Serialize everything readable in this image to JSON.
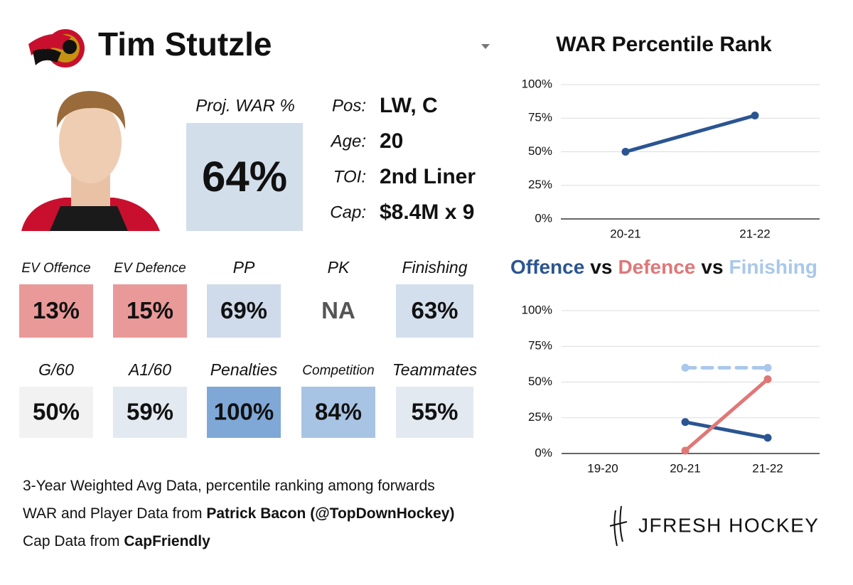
{
  "header": {
    "player": "Tim Stutzle"
  },
  "proj_war": {
    "label": "Proj. WAR %",
    "value": "64%"
  },
  "bio": [
    {
      "label": "Pos:",
      "value": "LW, C"
    },
    {
      "label": "Age:",
      "value": "20"
    },
    {
      "label": "TOI:",
      "value": "2nd Liner"
    },
    {
      "label": "Cap:",
      "value": "$8.4M x 9"
    }
  ],
  "tiles": [
    {
      "label": "EV Offence",
      "value": "13%",
      "color": "#ea9999"
    },
    {
      "label": "EV Defence",
      "value": "15%",
      "color": "#ea9999"
    },
    {
      "label": "PP",
      "value": "69%",
      "color": "#cfdbea"
    },
    {
      "label": "PK",
      "value": "NA"
    },
    {
      "label": "Finishing",
      "value": "63%",
      "color": "#d3dfec"
    },
    {
      "label": "G/60",
      "value": "50%",
      "color": "#f2f2f2"
    },
    {
      "label": "A1/60",
      "value": "59%",
      "color": "#e3e9f0"
    },
    {
      "label": "Penalties",
      "value": "100%",
      "color": "#7fa8d6"
    },
    {
      "label": "Competition",
      "value": "84%",
      "color": "#a8c4e4"
    },
    {
      "label": "Teammates",
      "value": "55%",
      "color": "#e3e9f0"
    }
  ],
  "footer": {
    "lines": [
      [
        {
          "text": "3-Year Weighted Avg Data, percentile ranking among forwards"
        }
      ],
      [
        {
          "text": "WAR and Player Data from "
        },
        {
          "text": "Patrick Bacon (@TopDownHockey)",
          "bold": true
        }
      ],
      [
        {
          "text": "Cap Data from "
        },
        {
          "text": "CapFriendly",
          "bold": true
        }
      ]
    ]
  },
  "brand": "JFRESH HOCKEY",
  "chart_data": [
    {
      "type": "line",
      "title": "WAR Percentile Rank",
      "categories": [
        "20-21",
        "21-22"
      ],
      "series": [
        {
          "color": "#2b5592",
          "values": [
            50,
            77
          ]
        }
      ],
      "ylim": [
        0,
        100
      ],
      "yticks": [
        {
          "value": 0,
          "label": "0%"
        },
        {
          "value": 25,
          "label": "25%"
        },
        {
          "value": 50,
          "label": "50%"
        },
        {
          "value": 75,
          "label": "75%"
        },
        {
          "value": 100,
          "label": "100%"
        }
      ],
      "grid": true
    },
    {
      "type": "line",
      "title_joiner": "vs",
      "categories": [
        "19-20",
        "20-21",
        "21-22"
      ],
      "series": [
        {
          "name": "Offence",
          "color": "#2b5592",
          "values": [
            null,
            22,
            11
          ]
        },
        {
          "name": "Defence",
          "color": "#e07777",
          "values": [
            null,
            2,
            52
          ]
        },
        {
          "name": "Finishing",
          "color": "#a9c8ea",
          "values": [
            null,
            60,
            60
          ],
          "dashed": true
        }
      ],
      "ylim": [
        0,
        100
      ],
      "yticks": [
        {
          "value": 0,
          "label": "0%"
        },
        {
          "value": 25,
          "label": "25%"
        },
        {
          "value": 50,
          "label": "50%"
        },
        {
          "value": 75,
          "label": "75%"
        },
        {
          "value": 100,
          "label": "100%"
        }
      ],
      "grid": true
    }
  ]
}
